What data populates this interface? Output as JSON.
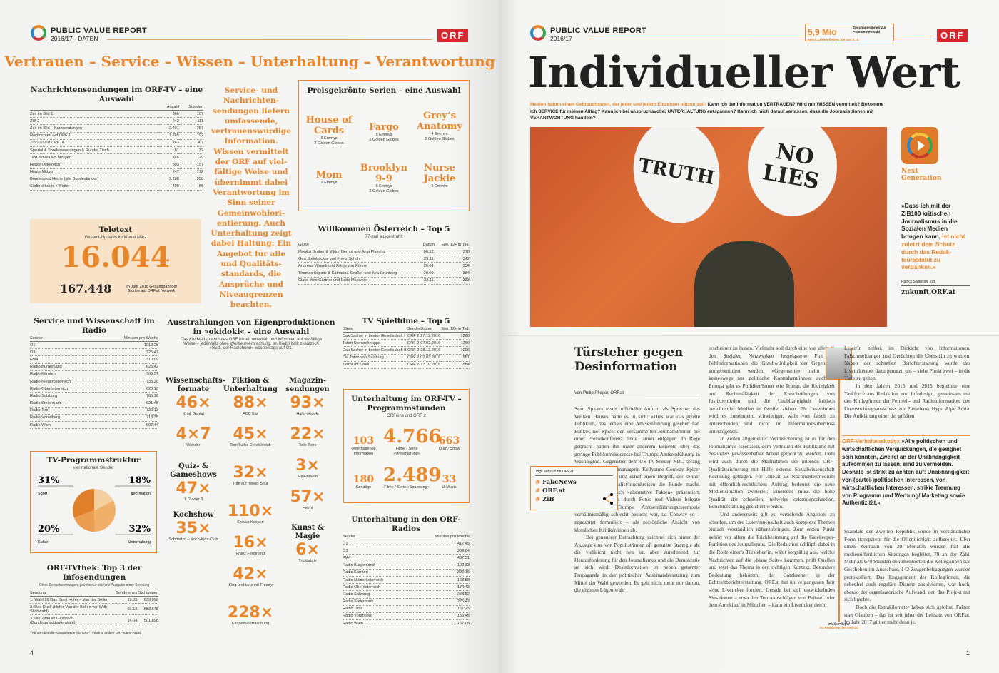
{
  "left": {
    "header": {
      "title": "PUBLIC VALUE REPORT",
      "subtitle": "2016/17 - DATEN",
      "brand": "ORF"
    },
    "headline": "Vertrauen – Service – Wissen – Unterhaltung – Verantwortung",
    "news": {
      "title": "Nachrichtensendungen im ORF-TV – eine Auswahl",
      "cols": [
        "",
        "Anzahl",
        "Stunden"
      ],
      "rows": [
        [
          "Zeit im Bild 1",
          "366",
          "107"
        ],
        [
          "ZIB 2",
          "242",
          "111"
        ],
        [
          "Zeit im Bild – Kurzsendungen",
          "2.401",
          "257"
        ],
        [
          "Nachrichten auf ORF 1",
          "1.765",
          "192"
        ],
        [
          "Zib 100 auf ORF III",
          "143",
          "4,7"
        ],
        [
          "Spezial & Sondersendungen & Runder Tisch",
          "81",
          "32"
        ],
        [
          "Text aktuell am Morgen",
          "146",
          "129"
        ],
        [
          "Heute Österreich",
          "503",
          "157"
        ],
        [
          "Heute Mittag",
          "247",
          "172"
        ],
        [
          "Bundesland Heute (alle Bundesländer)",
          "3.288",
          "958"
        ],
        [
          "Südtirol heute +Wetter",
          "498",
          "86"
        ]
      ]
    },
    "sidequote": "Service- und Nachrichten­sendungen liefern umfassende, vertrauenswürdige Information. Wissen vermittelt der ORF auf viel­fältige Weise und übernimmt dabei Verantwortung im Sinn seiner Gemeinwohlori­entierung. Auch Unterhaltung zeigt dabei Haltung: Ein Angebot für alle und Qualitäts­standards, die Ansprüche und Niveaugrenzen beachten.",
    "series": {
      "title": "Preisgekrönte Serien – eine Auswahl",
      "items": [
        {
          "name": "House of Cards",
          "awards": "6 Emmys\n2 Golden Globes"
        },
        {
          "name": "Fargo",
          "awards": "5 Emmys\n2 Golden Globes"
        },
        {
          "name": "Grey’s Anatomy",
          "awards": "4 Emmys\n2 Golden Globes"
        },
        {
          "name": "Mom",
          "awards": "2 Emmys"
        },
        {
          "name": "Brooklyn 9-9",
          "awards": "6 Emmys\n2 Golden Globes"
        },
        {
          "name": "Nurse Jackie",
          "awards": "5 Emmys"
        }
      ]
    },
    "willkommen": {
      "title": "Willkommen Österreich – Top 5",
      "subtitle": "77-mal ausgestrahlt",
      "cols": [
        "Gäste",
        "Datum",
        "Erw. 12+ in Tsd."
      ],
      "rows": [
        [
          "Monika Gruber & Viktor Gernot und Anja Plaschg",
          "06.12.",
          "370"
        ],
        [
          "Gert Steinbäcker und Franz Schuh",
          "29.11.",
          "342"
        ],
        [
          "Andreas Vitasek und Ronja von Rönne",
          "26.04.",
          "334"
        ],
        [
          "Thomas Stipsits & Katharina Straßer und Kira Grünberg",
          "20.09.",
          "334"
        ],
        [
          "Claus theo Gärtner und Edita Malovcic",
          "22.11.",
          "333"
        ]
      ]
    },
    "teletext": {
      "title": "Teletext",
      "subtitle": "Gesamt-Updates im Monat März",
      "value": "16.044",
      "value2": "167.448",
      "note": "Im Jahr 2016 Gesamtzahl der Stories auf ORF.at Network"
    },
    "radio_service": {
      "title": "Service und Wissenschaft im Radio",
      "cols": [
        "Sender",
        "Minuten pro Woche"
      ],
      "rows": [
        [
          "Ö1",
          "1013:25"
        ],
        [
          "Ö3",
          "726:47"
        ],
        [
          "FM4",
          "310:09"
        ],
        [
          "Radio Burgenland",
          "625:42"
        ],
        [
          "Radio Kärnten",
          "765:57"
        ],
        [
          "Radio Niederösterreich",
          "733:20"
        ],
        [
          "Radio Oberösterreich",
          "620:10"
        ],
        [
          "Radio Salzburg",
          "765:16"
        ],
        [
          "Radio Steiermark",
          "621:45"
        ],
        [
          "Radio Tirol",
          "729:13"
        ],
        [
          "Radio Vorarlberg",
          "713:35"
        ],
        [
          "Radio Wien",
          "607:44"
        ]
      ]
    },
    "chart_data": {
      "type": "pie",
      "title": "TV-Programmstruktur",
      "subtitle": "vier nationale Sender",
      "categories": [
        "Sport",
        "Information",
        "Unterhaltung",
        "Kultur"
      ],
      "values": [
        31,
        18,
        32,
        20
      ],
      "labels": [
        "31%",
        "18%",
        "32%",
        "20%"
      ],
      "colors": [
        "#e07f2a",
        "#f6cf9f",
        "#f0b06a",
        "#eb9e4f"
      ]
    },
    "tvthek": {
      "title": "ORF-TVthek: Top 3 der Infosendungen",
      "subtitle": "Ohne Doppelnennungen, jeweils nur stärkste Ausgabe einer Sendung",
      "cols": [
        "Sendung",
        "Sendetermin",
        "Sichtungen"
      ],
      "rows": [
        [
          "1. Wahl 16 Das Duell Hofer – Van der Bellen",
          "19.05.",
          "639.098"
        ],
        [
          "2. Das Duell (Hofer-Van der Bellen vor Wdh. Stichwahl)",
          "01.12.",
          "553.578"
        ],
        [
          "3. Die Zwei im Gespräch (Bundespräsidentenwahl)",
          "14.04.",
          "501.896"
        ]
      ],
      "footnote": "* Abrufe über alle Ausspielwege (via ORF-TVthek u. andere ORF-Sites/-Apps)"
    },
    "okidoki": {
      "title": "Ausstrahlungen von Eigenproduktionen in »okidoki« – eine Auswahl",
      "intro": "Das Kindeprogramm des ORF bildet, unterhält und informiert auf vielfältige Weise – jedenfalls ohne Werbeunterbrechung. Im Radio bellt zusätzlich »Rudi, der Radiohund« wochentags auf Ö1.",
      "col1": [
        {
          "head": "Wissenschafts­formate",
          "n": "46×",
          "t": "Knall Genial"
        },
        {
          "n": "4×7",
          "t": "Wunder"
        },
        {
          "head": "Quiz- & Gameshows",
          "n": "47×",
          "t": "1, 2 oder 3"
        },
        {
          "head": "Kochshow",
          "n": "35×",
          "t": "Schmatzo – Koch-Kids-Club"
        }
      ],
      "col2": [
        {
          "head": "Fiktion & Unterhaltung",
          "n": "88×",
          "t": "ABC Bär"
        },
        {
          "n": "45×",
          "t": "Tom Turbo Detektivclub"
        },
        {
          "n": "32×",
          "t": "Tom auf heißer Spur"
        },
        {
          "n": "110×",
          "t": "Servus Kasperl"
        },
        {
          "n": "16×",
          "t": "Franz Ferdinand"
        },
        {
          "n": "42×",
          "t": "Sing und tanz mit Freddy"
        },
        {
          "n": "228×",
          "t": "Kasperlüberraschung"
        }
      ],
      "col3": [
        {
          "head": "Magazin­sendungen",
          "n": "93×",
          "t": "Hallo okidoki"
        },
        {
          "n": "22×",
          "t": "Tolle Tiere"
        },
        {
          "n": "3×",
          "t": "Miniversum"
        },
        {
          "n": "57×",
          "t": "Helmi"
        },
        {
          "head": "Kunst & Magie",
          "n": "6×",
          "t": "Trickfabrik"
        }
      ]
    },
    "spielfilme": {
      "title": "TV Spielfilme – Top 5",
      "cols": [
        "Gäste",
        "Sender",
        "Datum",
        "Erw. 12+ in Tsd."
      ],
      "rows": [
        [
          "Das Sacher in bester Gesellschaft I",
          "ORF 2",
          "27.12.2016",
          "1266"
        ],
        [
          "Tatort Sternschnuppe",
          "ORF 2",
          "07.02.2016",
          "1169"
        ],
        [
          "Das Sacher in bester Gesellschaft II",
          "ORF 2",
          "28.12.2016",
          "1096"
        ],
        [
          "Die Toten von Salzburg",
          "ORF 2",
          "02.03.2016",
          "961"
        ],
        [
          "Terror Ihr Urteil",
          "ORF 2",
          "17.10.2016",
          "884"
        ]
      ]
    },
    "unterhaltung_tv": {
      "title": "Unterhaltung im ORF-TV – Programmstunden",
      "subtitle": "ORFeins und ORF 2",
      "items": [
        {
          "n": "103",
          "t": "Unterhaltende Information"
        },
        {
          "n": "4.766",
          "t": "Filme / Serie »Unterhaltung«"
        },
        {
          "n": "663",
          "t": "Quiz / Show"
        },
        {
          "n": "180",
          "t": "Sonstige"
        },
        {
          "n": "2.489",
          "t": "Filme / Serie »Spannung«"
        },
        {
          "n": "33",
          "t": "U-Musik"
        }
      ]
    },
    "radio_unterhaltung": {
      "title": "Unterhaltung in den ORF-Radios",
      "cols": [
        "Sender",
        "Minuten pro Woche"
      ],
      "rows": [
        [
          "Ö1",
          "417:45"
        ],
        [
          "Ö3",
          "389:04"
        ],
        [
          "FM4",
          "437:51"
        ],
        [
          "Radio Burgenland",
          "102:33"
        ],
        [
          "Radio Kärnten",
          "392:16"
        ],
        [
          "Radio Niederösterreich",
          "168:58"
        ],
        [
          "Radio Oberösterreich",
          "174:42"
        ],
        [
          "Radio Salzburg",
          "248:52"
        ],
        [
          "Radio Steiermark",
          "275:42"
        ],
        [
          "Radio Tirol",
          "167:25"
        ],
        [
          "Radio Vorarlberg",
          "165:45"
        ],
        [
          "Radio Wien",
          "167:08"
        ]
      ]
    },
    "page_number": "4"
  },
  "right": {
    "header": {
      "title": "PUBLIC VALUE REPORT",
      "subtitle": "2016/17",
      "brand": "ORF"
    },
    "teaser": {
      "value": "5,9 Mio",
      "label": "Zuschauer/innen zur Präsidentenwahl",
      "note": "Mehr Zahlen finden Sie auf S. 4."
    },
    "title": "Individueller Wert",
    "intro_lead": "Medien haben einen Gebrauchswert, der jeder und jedem Einzelnen nützen soll:",
    "intro": "Kann ich der Information VERTRAUEN? Wird mir WISSEN vermittelt? Bekomme ich SERVICE für meinen Alltag? Kann ich bei anspruchsvoller UNTERHALTUNG entspannen? Kann ich mich darauf verlassen, dass die Journalist/innen mit VERANTWORTUNG handeln?",
    "photo_signs": [
      "TRUTH",
      "NO LIES"
    ],
    "sidebar": {
      "label": "Next Generation",
      "quote": "»Dass ich mit der ZiB100 kritischen Journalismus in die Sozia­len Medien bringen kann,",
      "quote_hl": "ist nicht zu­letzt dem Schutz durch das Redak­teursstatut zu verdanken.«",
      "author": "Patrick Swanson, ZiB",
      "url": "zukunft.ORF.at"
    },
    "article": {
      "title": "Türsteher gegen Desinformation",
      "byline": "Von Philip Pfleger, ORF.at",
      "col1": [
        "Sean Spicers erster offizieller Auftritt als Sprecher des Weißen Hauses hatte es in sich: »Dies war das größte Publikum, das jemals eine Amtseinführung gesehen hat. Punkt«, rief Spicer den versammelten Journalist/innen bei einer Pressekonferenz Ende Jänner entgegen. In Rage gebracht hatten ihn unter anderem Berichte über das geringe Publikumsinteresse bei Trumps Amtseinführung in Washington. Gegenüber dem US-TV-Sender NBC sprang Trumps Wahlkampfmanagerin Kellyanne Conway Spicer wenig später bei – und schuf einen Begriff, der seither nicht nur in Journalist/innenkreisen die Runde macht. Spicer habe lediglich »alternative Fakten« präsentiert, sagte Conway. Das durch Fotos und Videos belegte Faktum, dass Trumps Amtseinführungszeremonie verhältnismäßig schlecht besucht war, tat Conway so – zugespitzt formuliert – als persönliche Ansicht von kleinlichen Kritiker/innen ab.",
        "Bei genauerer Betrachtung zeichnet sich hinter der Aussage eine von Populist/innen oft genutzte Strategie ab, die vielleicht nicht neu ist, aber zunehmend zur Herausforderung für den Journalismus und die Demokratie an sich wird: Desinformation ist neben getarnter Propaganda in der politischen Auseinandersetzung zum Mittel der Wahl geworden. Es geht nicht mehr nur darum, die eigenen Lügen wahr"
      ],
      "col2": [
        "erscheinen zu lassen. Vielmehr soll durch eine vor allem in den Sozialen Netzwerken losgelassene Flut an Fehlinformationen die Glaubwürdigkeit der Gegenseite kompromittiert werden. »Gegenseite« meint hier keineswegs nur politische Kontrahent/innen; auch in Europa gibt es Politiker/innen wie Trump, die Richtigkeit und Rechtmäßigkeit der Entscheidungen von Justizbehörden und die Unabhängigkeit kritisch berichtender Medien in Zweifel ziehen. Für Leser/innen wird es zunehmend schwieriger, wahr von falsch zu unterscheiden und nicht im Informationsüberfluss unterzugehen.",
        "In Zeiten allgemeiner Verunsicherung ist es für den Journalismus essenziell, dem Vertrauen des Publikums mit besonders gewissenhafter Arbeit gerecht zu werden. Dem wird auch durch die Maßnahmen der internen ORF-Qualitätssicherung mit Hilfe externe Sozialwissenschaft Rechnung getragen. Für ORF.at als Nachrichtenmedium mit öffentlich-rechtlichem Auftrag bedeutet die neue Mediensituation zweierlei: Einerseits muss die hohe Qualität der schnellen, teilweise sekundenschnellen, Berichterstattung gesichert werden.",
        "Und andererseits gilt es, vertiefende Angebote zu schaffen, um der Leser/innenschaft auch komplexe Themen einfach verständlich näherzubringen. Zum ersten Punkt gehört vor allem die Rückbesinnung auf die Gatekeeper-Funktion des Journalismus. Die Redaktion schlüpft dabei in die Rolle einer/s Türsteher/in, wählt sorgfältig aus, welche Nachrichten auf die »blaue Seite« kommen, prüft Quellen und setzt das Thema in den richtigen Kontext. Besondere Bedeutung bekommt der Gatekeeper in der Echtzeitberichterstattung. ORF.at hat im vergangenen Jahr seine Liveticker forciert. Gerade bei sich entwickelnden Situationen – etwa den Terroranschlägen von Brüssel oder dem Amoklauf in München – kann ein Liveticker der/m"
      ],
      "col3a": [
        "Leser/in helfen, im Dickicht von Informationen, Falschmeldungen und Gerüchten die Übersicht zu wahren. Neben der schnellen Berichterstattung wurde das Livetickertool dazu genutzt, um – siehe Punkt zwei – in die Tiefe zu gehen.",
        "In den Jahren 2015 und 2016 begleitete eine Taskforce aus Redaktion und Infodesign, gemeinsam mit den Kolleg/innen der Fernseh- und Radioinformation, den Untersuchungsausschuss zur Pleitebank Hypo Alpe Adria. Die Aufklärung einer der größten"
      ],
      "col3b": [
        "Skandale der Zweiten Republik wurde in verständlicher Form transparent für die Öffentlichkeit aufbereitet. Über einen Zeitraum von 20 Monaten wurden fast alle medienöffentlichen Sitzungen begleitet, 79 an der Zahl. Mehr als 670 Stunden dokumentierten die Kolleg/innen das Geschehen im Ausschuss, 142 Zeugenbefragungen wurden protokolliert. Das Engagement der Kolleg/innen, die nebenbei auch reguläre Dienste absolvierten, war hoch, ebenso der organisatorische Aufwand, den das Projekt mit sich brachte.",
        "Doch die Extrakilometer haben sich gelohnt. Fakten statt Glauben – das ist seit jeher der Leitsatz von ORF.at. Im Jahr 2017 gilt er mehr denn je."
      ],
      "kodex_label": "ORF-Verhaltenskodex",
      "kodex": "»Alle politischen und wirtschaftlichen Verquickungen, die geeignet sein könnten, Zweifel an der Unabhängigkeit aufkommen zu lassen, sind zu vermeiden. Deshalb ist strikt zu achten auf: Unabhängigkeit von (partei-)politischen Interessen, von wirtschaftlichen Interessen, strikte Trennung von Programm und Werbung/ Marketing sowie Authentizität.«",
      "author_name": "Philip Pfleger",
      "author_role": "ist Redakteur bei ORF.at."
    },
    "tags": {
      "title": "Tags auf zukunft.ORF.at",
      "items": [
        "FakeNews",
        "ORF.at",
        "ZiB"
      ]
    },
    "page_number": "1",
    "colors": {
      "accent": "#e8862a",
      "brand": "#d8262f"
    }
  }
}
